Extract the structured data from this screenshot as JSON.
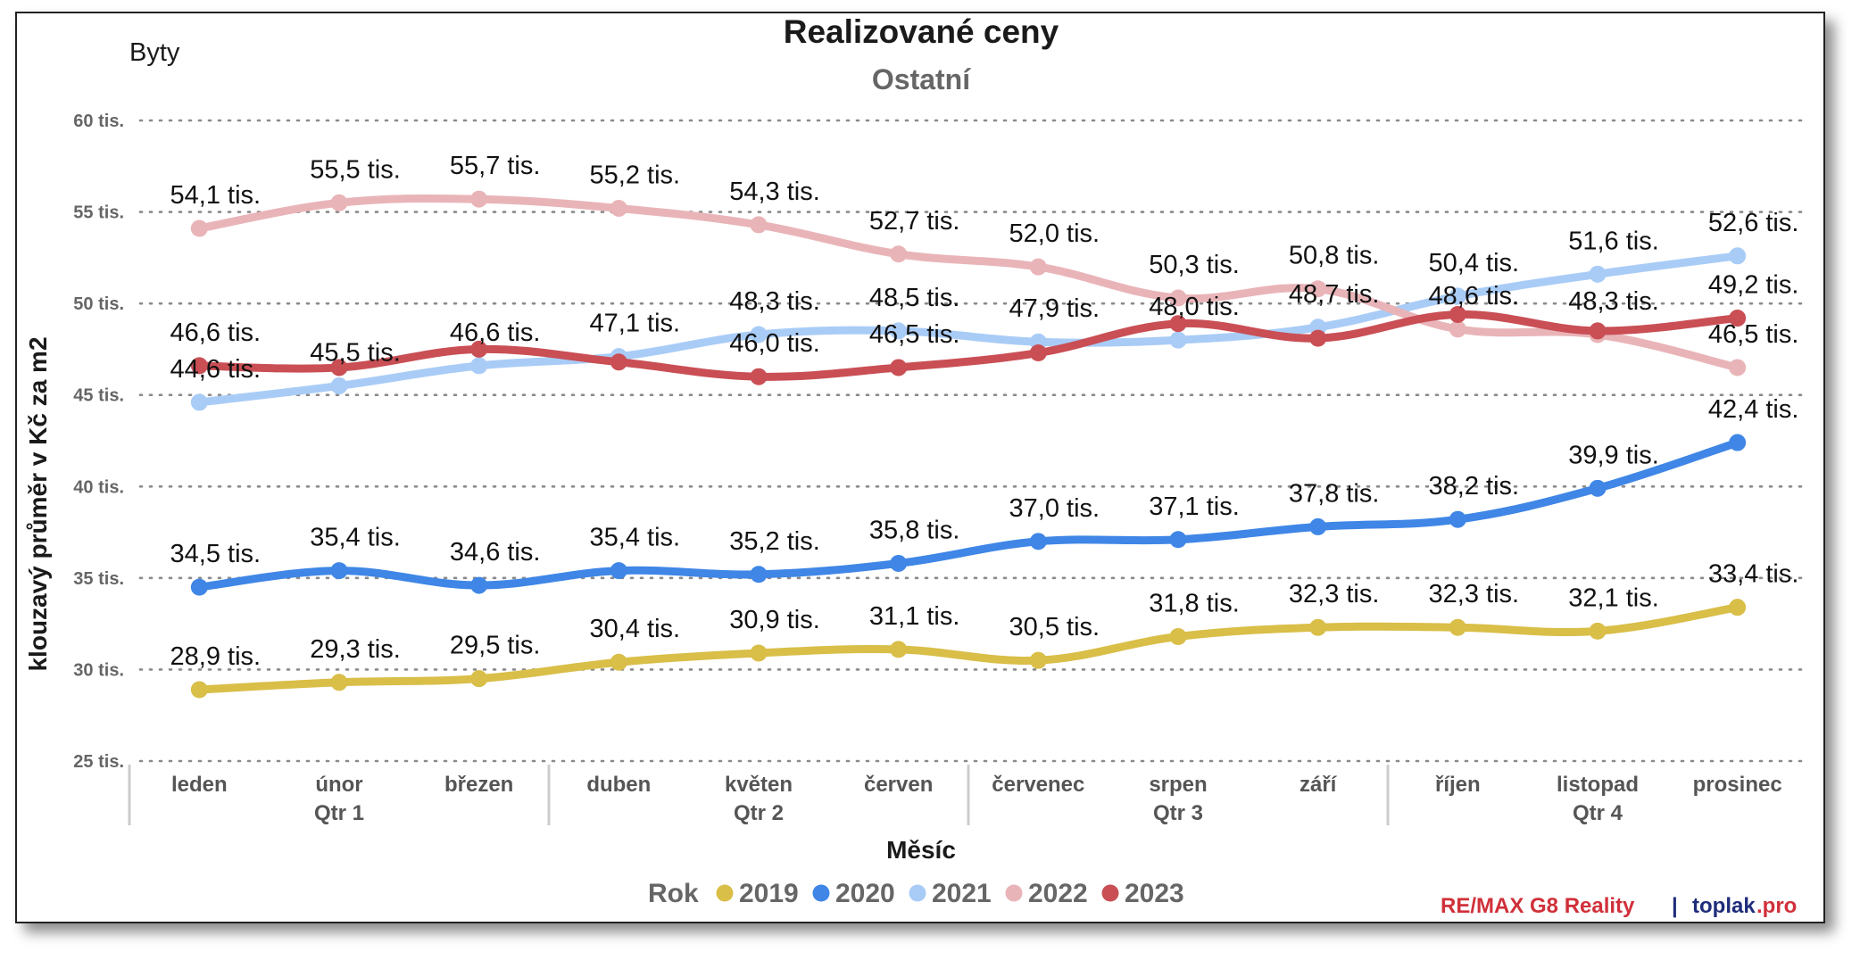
{
  "header": {
    "corner_label": "Byty"
  },
  "chart_data": {
    "type": "line",
    "title": "Realizované ceny",
    "subtitle": "Ostatní",
    "xlabel": "Měsíc",
    "ylabel": "klouzavý průměr v Kč za m2",
    "ylim": [
      25,
      60
    ],
    "yticks": [
      25,
      30,
      35,
      40,
      45,
      50,
      55,
      60
    ],
    "ytick_labels": [
      "25 tis.",
      "30 tis.",
      "35 tis.",
      "40 tis.",
      "45 tis.",
      "50 tis.",
      "55 tis.",
      "60 tis."
    ],
    "categories": [
      "leden",
      "únor",
      "březen",
      "duben",
      "květen",
      "červen",
      "červenec",
      "srpen",
      "září",
      "říjen",
      "listopad",
      "prosinec"
    ],
    "groups": [
      {
        "label": "Qtr 1",
        "start": 0,
        "end": 2
      },
      {
        "label": "Qtr 2",
        "start": 3,
        "end": 5
      },
      {
        "label": "Qtr 3",
        "start": 6,
        "end": 8
      },
      {
        "label": "Qtr 4",
        "start": 9,
        "end": 11
      }
    ],
    "grid": true,
    "legend_title": "Rok",
    "legend_position": "bottom",
    "series": [
      {
        "name": "2019",
        "color": "#D9BE48",
        "values": [
          28.9,
          29.3,
          29.5,
          30.4,
          30.9,
          31.1,
          30.5,
          31.8,
          32.3,
          32.3,
          32.1,
          33.4
        ],
        "labels": [
          "28,9 tis.",
          "29,3 tis.",
          "29,5 tis.",
          "30,4 tis.",
          "30,9 tis.",
          "31,1 tis.",
          "30,5 tis.",
          "31,8 tis.",
          "32,3 tis.",
          "32,3 tis.",
          "32,1 tis.",
          "33,4 tis."
        ]
      },
      {
        "name": "2020",
        "color": "#3F86E6",
        "values": [
          34.5,
          35.4,
          34.6,
          35.4,
          35.2,
          35.8,
          37.0,
          37.1,
          37.8,
          38.2,
          39.9,
          42.4
        ],
        "labels": [
          "34,5 tis.",
          "35,4 tis.",
          "34,6 tis.",
          "35,4 tis.",
          "35,2 tis.",
          "35,8 tis.",
          "37,0 tis.",
          "37,1 tis.",
          "37,8 tis.",
          "38,2 tis.",
          "39,9 tis.",
          "42,4 tis."
        ]
      },
      {
        "name": "2021",
        "color": "#A9CCF7",
        "values": [
          44.6,
          45.5,
          46.6,
          47.1,
          48.3,
          48.5,
          47.9,
          48.0,
          48.7,
          50.4,
          51.6,
          52.6
        ],
        "labels": [
          "44,6 tis.",
          "45,5 tis.",
          "46,6 tis.",
          "47,1 tis.",
          "48,3 tis.",
          "48,5 tis.",
          "47,9 tis.",
          "48,0 tis.",
          "48,7 tis.",
          "50,4 tis.",
          "51,6 tis.",
          "52,6 tis."
        ]
      },
      {
        "name": "2022",
        "color": "#E9B4B8",
        "values": [
          54.1,
          55.5,
          55.7,
          55.2,
          54.3,
          52.7,
          52.0,
          50.3,
          50.8,
          48.6,
          48.3,
          46.5
        ],
        "labels": [
          "54,1 tis.",
          "55,5 tis.",
          "55,7 tis.",
          "55,2 tis.",
          "54,3 tis.",
          "52,7 tis.",
          "52,0 tis.",
          "50,3 tis.",
          "50,8 tis.",
          "48,6 tis.",
          "48,3 tis.",
          "46,5 tis."
        ]
      },
      {
        "name": "2023",
        "color": "#C94F55",
        "values": [
          46.6,
          46.5,
          47.5,
          46.8,
          46.0,
          46.5,
          47.3,
          48.9,
          48.1,
          49.4,
          48.5,
          49.2
        ],
        "labels": [
          "46,6 tis.",
          "",
          "",
          "",
          "46,0 tis.",
          "46,5 tis.",
          "",
          "",
          "",
          "",
          "",
          "49,2 tis."
        ]
      }
    ]
  },
  "branding": {
    "part1": "RE/MAX G8 Reality",
    "separator": "|",
    "part2a": "toplak",
    "part2b": ".pro"
  }
}
